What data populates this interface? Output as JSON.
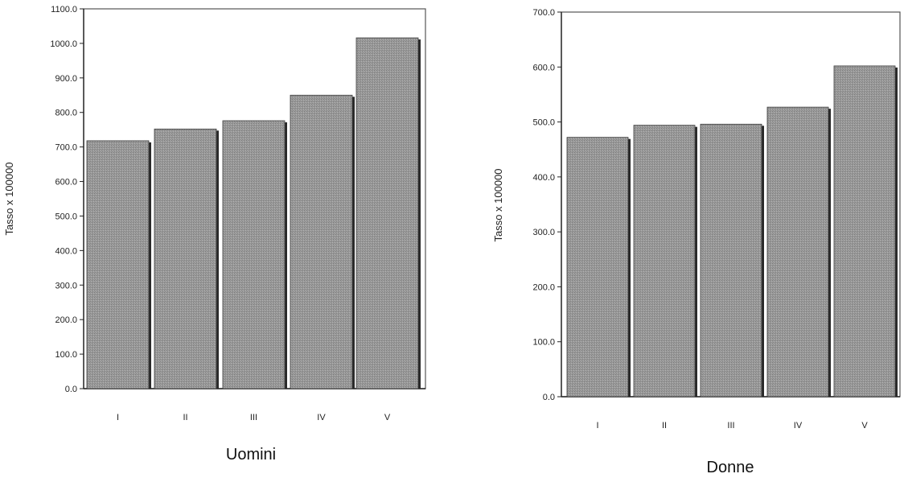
{
  "chart_data": [
    {
      "type": "bar",
      "title": "Uomini",
      "xlabel": "",
      "ylabel": "Tasso x 100000",
      "categories": [
        "I",
        "II",
        "III",
        "IV",
        "V"
      ],
      "values": [
        718,
        752,
        776,
        850,
        1016
      ],
      "ylim": [
        0,
        1100
      ],
      "yticks": [
        "0.0",
        "100.0",
        "200.0",
        "300.0",
        "400.0",
        "500.0",
        "600.0",
        "700.0",
        "800.0",
        "900.0",
        "1000.0",
        "1100.0"
      ],
      "ytick_values": [
        0,
        100,
        200,
        300,
        400,
        500,
        600,
        700,
        800,
        900,
        1000,
        1100
      ],
      "grid": false,
      "bar_color": "#8f8f8f"
    },
    {
      "type": "bar",
      "title": "Donne",
      "xlabel": "",
      "ylabel": "Tasso x 100000",
      "categories": [
        "I",
        "II",
        "III",
        "IV",
        "V"
      ],
      "values": [
        472,
        494,
        496,
        527,
        602
      ],
      "ylim": [
        0,
        700
      ],
      "yticks": [
        "0.0",
        "100.0",
        "200.0",
        "300.0",
        "400.0",
        "500.0",
        "600.0",
        "700.0"
      ],
      "ytick_values": [
        0,
        100,
        200,
        300,
        400,
        500,
        600,
        700
      ],
      "grid": false,
      "bar_color": "#8f8f8f"
    }
  ]
}
